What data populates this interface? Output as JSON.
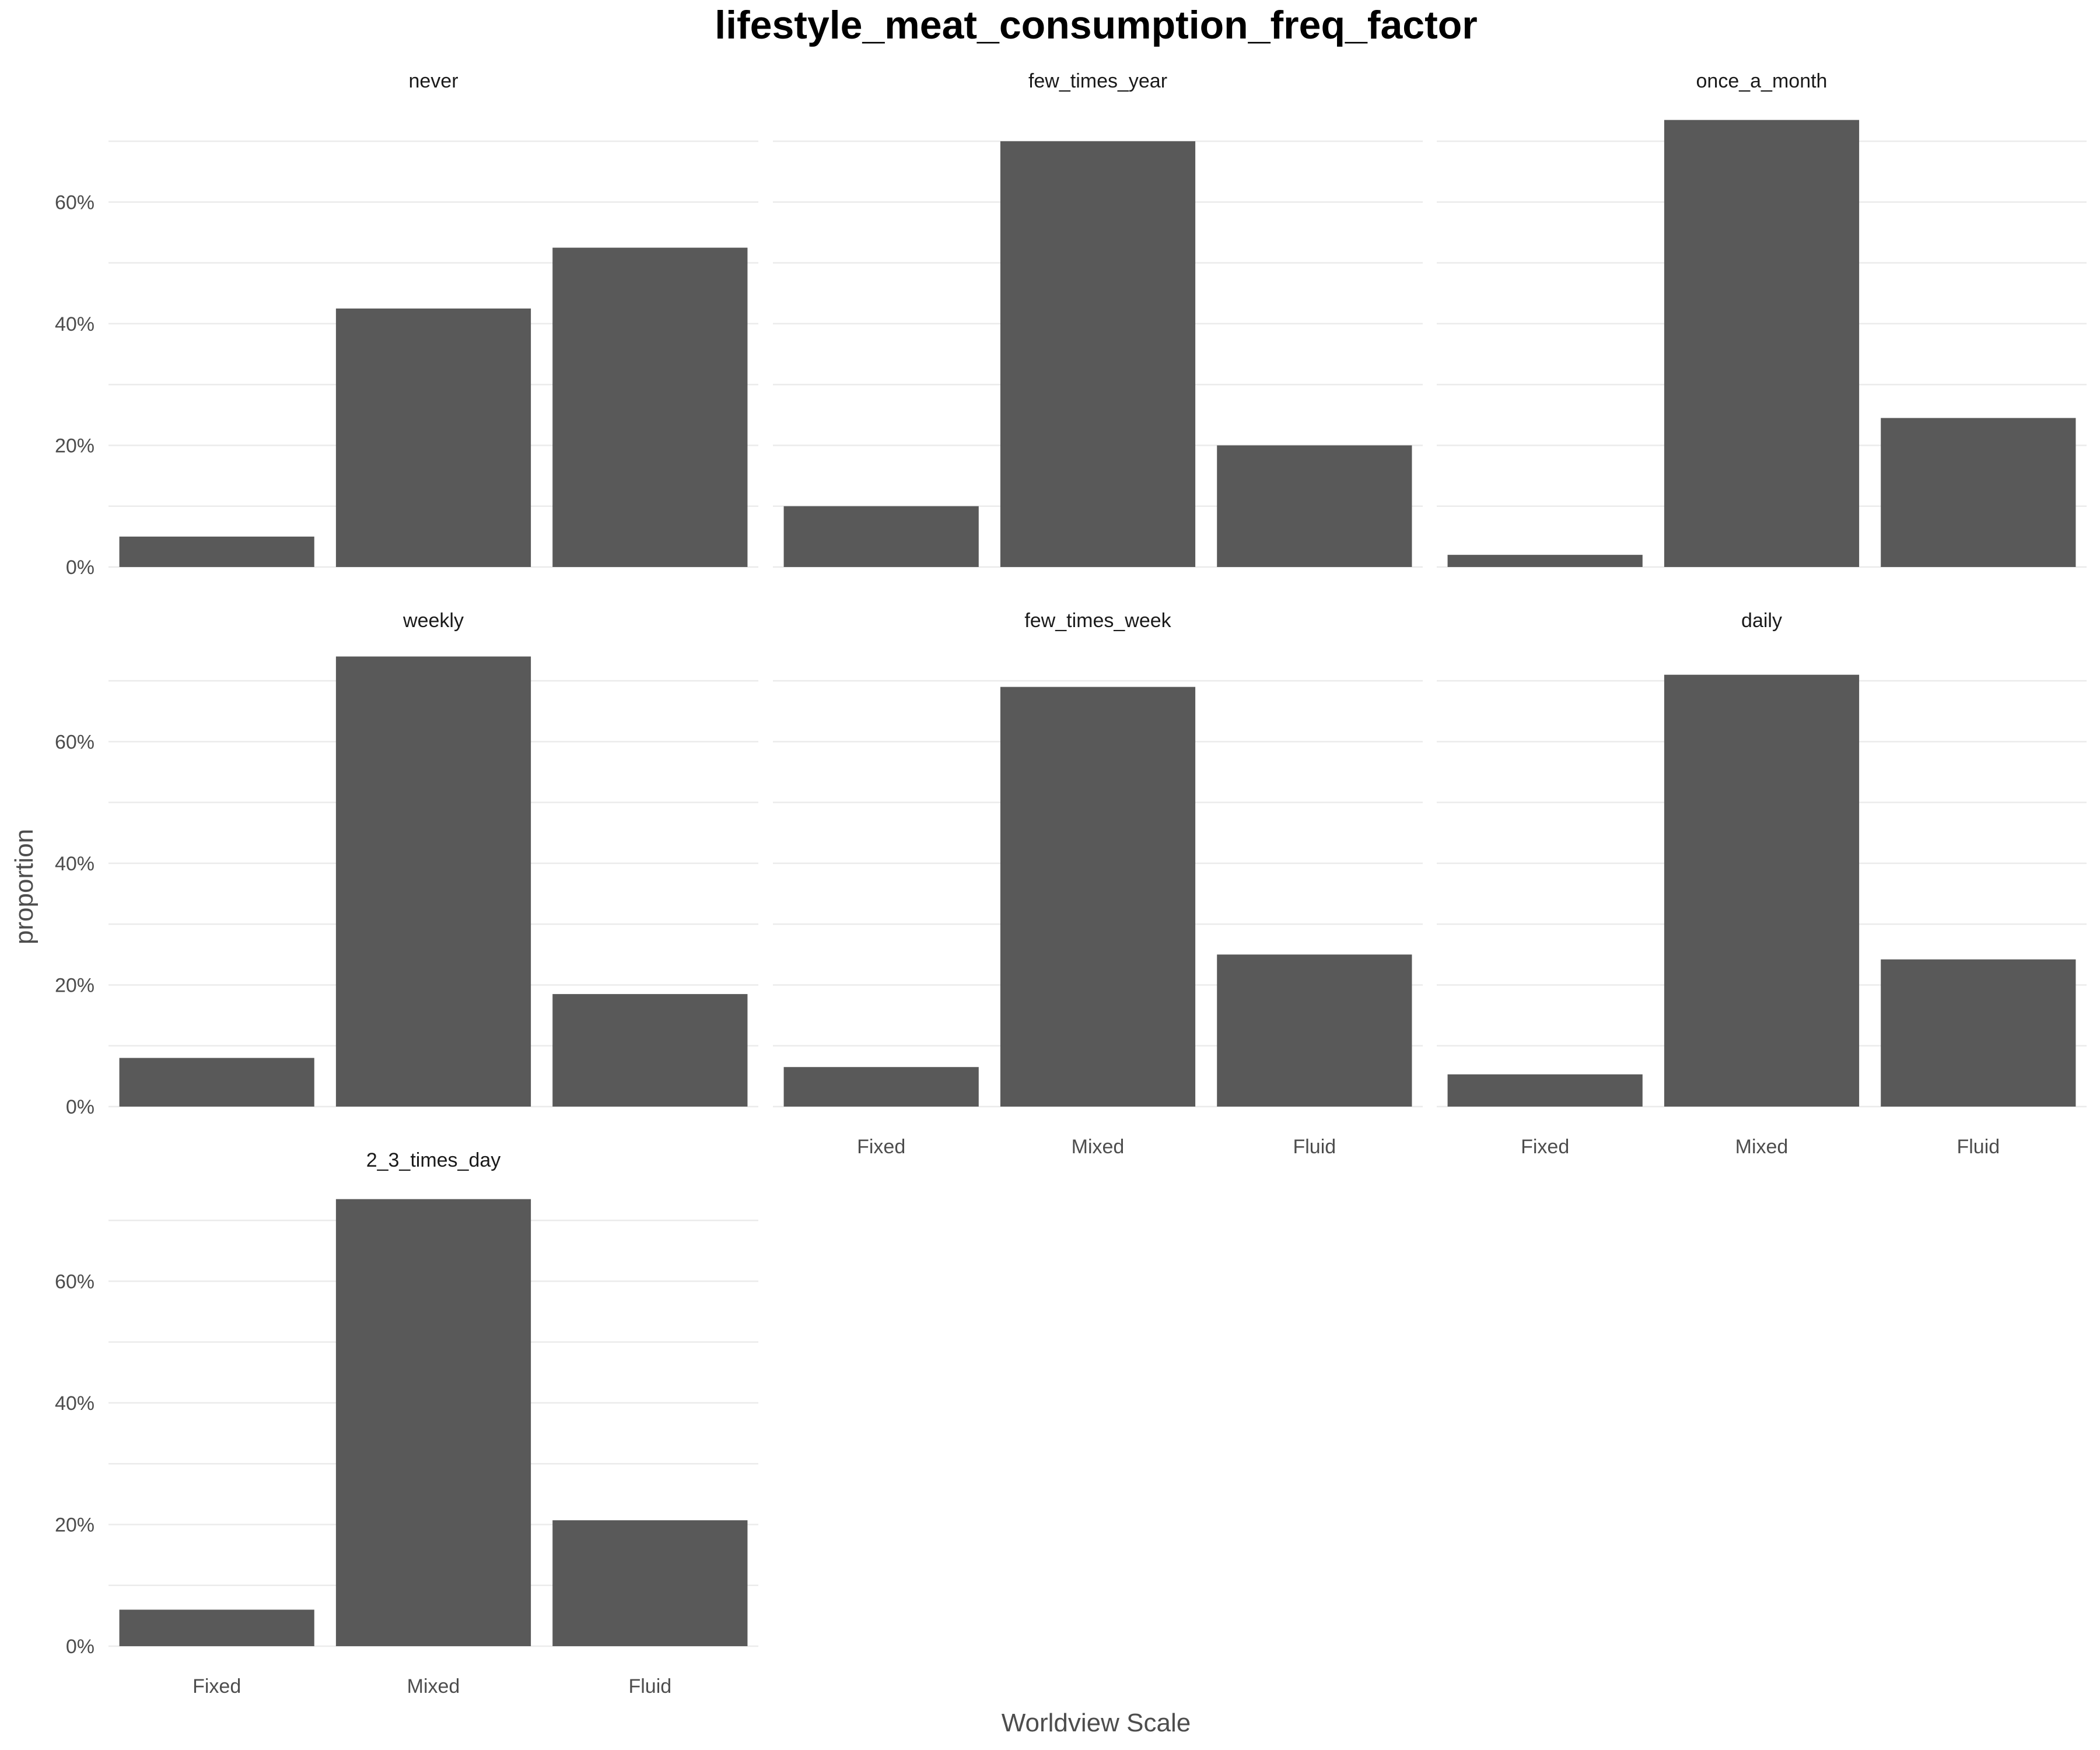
{
  "chart_data": {
    "type": "bar",
    "title": "lifestyle_meat_consumption_freq_factor",
    "xlabel": "Worldview Scale",
    "ylabel": "proportion",
    "categories": [
      "Fixed",
      "Mixed",
      "Fluid"
    ],
    "ylim": [
      0,
      0.75
    ],
    "y_ticks": [
      0,
      0.2,
      0.4,
      0.6
    ],
    "y_tick_labels": [
      "0%",
      "20%",
      "40%",
      "60%"
    ],
    "grid": true,
    "bar_color": "#595959",
    "facets": [
      {
        "name": "never",
        "values": [
          0.05,
          0.425,
          0.525
        ]
      },
      {
        "name": "few_times_year",
        "values": [
          0.1,
          0.7,
          0.2
        ]
      },
      {
        "name": "once_a_month",
        "values": [
          0.02,
          0.735,
          0.245
        ]
      },
      {
        "name": "weekly",
        "values": [
          0.08,
          0.74,
          0.185
        ]
      },
      {
        "name": "few_times_week",
        "values": [
          0.065,
          0.69,
          0.25
        ]
      },
      {
        "name": "daily",
        "values": [
          0.053,
          0.71,
          0.242
        ]
      },
      {
        "name": "2_3_times_day",
        "values": [
          0.06,
          0.735,
          0.207
        ]
      }
    ]
  }
}
